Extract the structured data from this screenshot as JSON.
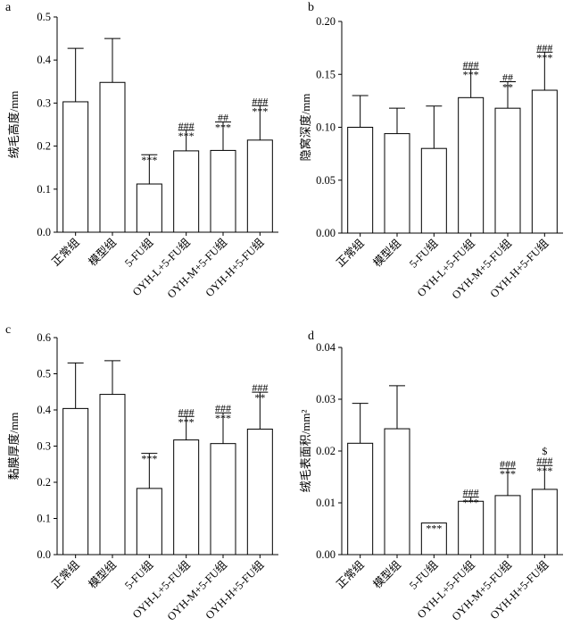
{
  "chart_data": [
    {
      "type": "bar",
      "panel": "a",
      "ylabel": "绒毛高度/mm",
      "ylim": [
        0,
        0.5
      ],
      "yticks": [
        "0.0",
        "0.1",
        "0.2",
        "0.3",
        "0.4",
        "0.5"
      ],
      "categories": [
        "正常组",
        "模型组",
        "5-FU组",
        "OYH-L+5-FU组",
        "OYH-M+5-FU组",
        "OYH-H+5-FU组"
      ],
      "values": [
        0.303,
        0.348,
        0.112,
        0.189,
        0.19,
        0.214
      ],
      "errors": [
        0.124,
        0.102,
        0.068,
        0.048,
        0.066,
        0.08
      ],
      "annotations": [
        [],
        [],
        [
          "***"
        ],
        [
          "***",
          "###"
        ],
        [
          "***",
          "##"
        ],
        [
          "***",
          "###"
        ]
      ],
      "error_bars": "upper",
      "grid": false
    },
    {
      "type": "bar",
      "panel": "b",
      "ylabel": "隐窝深度/mm",
      "ylim": [
        0,
        0.2
      ],
      "yticks": [
        "0.00",
        "0.05",
        "0.10",
        "0.15",
        "0.20"
      ],
      "categories": [
        "正常组",
        "模型组",
        "5-FU组",
        "OYH-L+5-FU组",
        "OYH-M+5-FU组",
        "OYH-H+5-FU组"
      ],
      "values": [
        0.1,
        0.094,
        0.08,
        0.128,
        0.118,
        0.135
      ],
      "errors": [
        0.03,
        0.024,
        0.04,
        0.027,
        0.025,
        0.036
      ],
      "annotations": [
        [],
        [],
        [],
        [
          "***",
          "###"
        ],
        [
          "**",
          "##"
        ],
        [
          "***",
          "###"
        ]
      ],
      "error_bars": "upper",
      "grid": false
    },
    {
      "type": "bar",
      "panel": "c",
      "ylabel": "黏膜厚度/mm",
      "ylim": [
        0,
        0.6
      ],
      "yticks": [
        "0.0",
        "0.1",
        "0.2",
        "0.3",
        "0.4",
        "0.5",
        "0.6"
      ],
      "categories": [
        "正常组",
        "模型组",
        "5-FU组",
        "OYH-L+5-FU组",
        "OYH-M+5-FU组",
        "OYH-H+5-FU组"
      ],
      "values": [
        0.404,
        0.443,
        0.183,
        0.317,
        0.307,
        0.347
      ],
      "errors": [
        0.126,
        0.093,
        0.097,
        0.065,
        0.085,
        0.102
      ],
      "annotations": [
        [],
        [],
        [
          "***"
        ],
        [
          "***",
          "###"
        ],
        [
          "***",
          "###"
        ],
        [
          "**",
          "###"
        ]
      ],
      "error_bars": "upper",
      "grid": false
    },
    {
      "type": "bar",
      "panel": "d",
      "ylabel": "绒毛表面积/mm²",
      "ylim": [
        0,
        0.04
      ],
      "yticks": [
        "0.00",
        "0.01",
        "0.02",
        "0.03",
        "0.04"
      ],
      "categories": [
        "正常组",
        "模型组",
        "5-FU组",
        "OYH-L+5-FU组",
        "OYH-M+5-FU组",
        "OYH-H+5-FU组"
      ],
      "values": [
        0.0215,
        0.0243,
        0.0061,
        0.0103,
        0.0114,
        0.0126
      ],
      "errors": [
        0.0077,
        0.0083,
        0.0,
        0.0008,
        0.0052,
        0.0046
      ],
      "annotations": [
        [],
        [],
        [
          "***"
        ],
        [
          "***",
          "###"
        ],
        [
          "***",
          "###"
        ],
        [
          "***",
          "###",
          "$"
        ]
      ],
      "error_bars": "upper",
      "grid": false
    }
  ]
}
